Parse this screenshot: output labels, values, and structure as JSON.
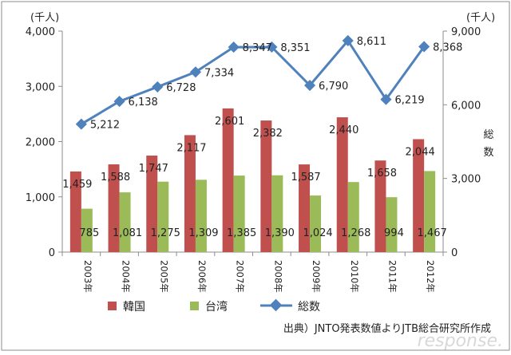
{
  "chart_data": {
    "type": "bar",
    "categories": [
      "2003年",
      "2004年",
      "2005年",
      "2006年",
      "2007年",
      "2008年",
      "2009年",
      "2010年",
      "2011年",
      "2012年"
    ],
    "series": [
      {
        "name": "韓国",
        "kind": "bar",
        "axis": "left",
        "color": "#c0504d",
        "values": [
          1459,
          1588,
          1747,
          2117,
          2601,
          2382,
          1587,
          2440,
          1658,
          2044
        ],
        "labels": [
          "1,459",
          "1,588",
          "1,747",
          "2,117",
          "2,601",
          "2,382",
          "1,587",
          "2,440",
          "1,658",
          "2,044"
        ]
      },
      {
        "name": "台湾",
        "kind": "bar",
        "axis": "left",
        "color": "#9bbb59",
        "values": [
          785,
          1081,
          1275,
          1309,
          1385,
          1390,
          1024,
          1268,
          994,
          1467
        ],
        "labels": [
          "785",
          "1,081",
          "1,275",
          "1,309",
          "1,385",
          "1,390",
          "1,024",
          "1,268",
          "994",
          "1,467"
        ]
      },
      {
        "name": "総数",
        "kind": "line",
        "axis": "right",
        "color": "#4f81bd",
        "values": [
          5212,
          6138,
          6728,
          7334,
          8347,
          8351,
          6790,
          8611,
          6219,
          8368
        ],
        "labels": [
          "5,212",
          "6,138",
          "6,728",
          "7,334",
          "8,347",
          "8,351",
          "6,790",
          "8,611",
          "6,219",
          "8,368"
        ]
      }
    ],
    "left_axis": {
      "unit": "(千人)",
      "ylim": [
        0,
        4000
      ],
      "ticks": [
        0,
        1000,
        2000,
        3000,
        4000
      ],
      "tick_labels": [
        "0",
        "1,000",
        "2,000",
        "3,000",
        "4,000"
      ]
    },
    "right_axis": {
      "unit": "(千人)",
      "label": "総数",
      "ylim": [
        0,
        9000
      ],
      "ticks": [
        0,
        3000,
        6000,
        9000
      ],
      "tick_labels": [
        "0",
        "3,000",
        "6,000",
        "9,000"
      ]
    },
    "legend": {
      "placement": "bottom"
    },
    "source_note": "出典）JNTO発表数値よりJTB総合研究所作成",
    "watermark": "response."
  }
}
